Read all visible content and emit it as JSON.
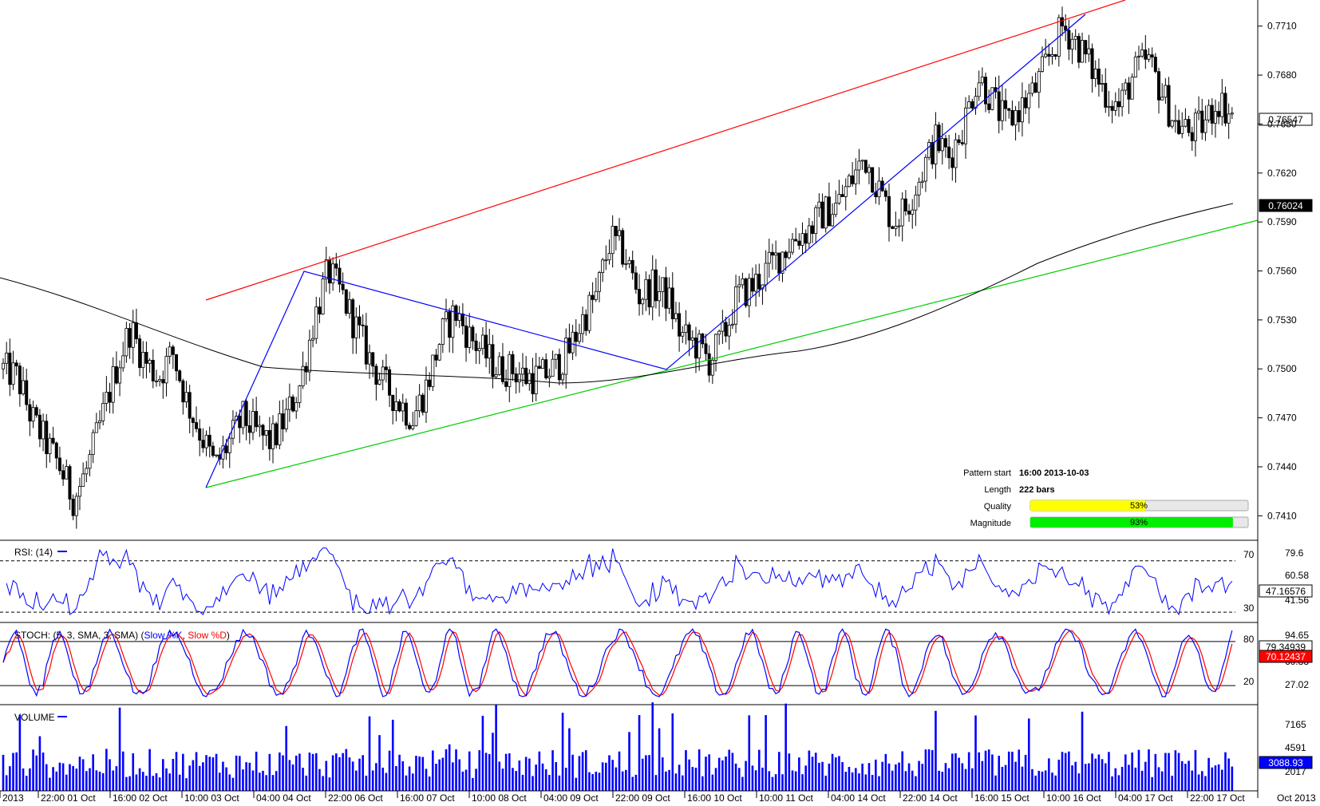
{
  "chart_data": {
    "type": "candlestick",
    "main": {
      "y_ticks": [
        "0.7710",
        "0.7680",
        "0.7650",
        "0.7620",
        "0.7590",
        "0.7560",
        "0.7530",
        "0.7500",
        "0.7470",
        "0.7440",
        "0.7410"
      ],
      "ylim": [
        0.7395,
        0.7726
      ],
      "current_price": "0.76547",
      "ma_value": "0.76024",
      "candles_shown": 370,
      "ohlc_approx": [
        0.75,
        0.7495,
        0.747,
        0.7455,
        0.744,
        0.742,
        0.744,
        0.747,
        0.75,
        0.7525,
        0.7505,
        0.7495,
        0.751,
        0.748,
        0.746,
        0.744,
        0.7455,
        0.747,
        0.746,
        0.7455,
        0.747,
        0.749,
        0.753,
        0.756,
        0.7545,
        0.7525,
        0.7505,
        0.749,
        0.748,
        0.747,
        0.749,
        0.752,
        0.7535,
        0.752,
        0.751,
        0.75,
        0.75,
        0.7495,
        0.7495,
        0.75,
        0.751,
        0.753,
        0.7545,
        0.758,
        0.757,
        0.7545,
        0.755,
        0.7545,
        0.752,
        0.7515,
        0.7505,
        0.752,
        0.7545,
        0.755,
        0.756,
        0.757,
        0.758,
        0.7585,
        0.7595,
        0.76,
        0.7615,
        0.763,
        0.761,
        0.759,
        0.76,
        0.762,
        0.764,
        0.763,
        0.765,
        0.768,
        0.7665,
        0.765,
        0.766,
        0.767,
        0.769,
        0.771,
        0.77,
        0.7685,
        0.767,
        0.766,
        0.768,
        0.769,
        0.767,
        0.765,
        0.7645,
        0.765,
        0.7665,
        0.7655
      ],
      "trend_lines": {
        "resistance": {
          "color": "#ff0000"
        },
        "support": {
          "color": "#00cc00"
        },
        "zigzag": {
          "color": "#0000ff"
        },
        "moving_average": {
          "color": "#000000"
        }
      }
    },
    "x_labels": [
      "2013",
      "22:00 01 Oct",
      "16:00 02 Oct",
      "10:00 03 Oct",
      "04:00 04 Oct",
      "22:00 06 Oct",
      "16:00 07 Oct",
      "10:00 08 Oct",
      "04:00 09 Oct",
      "22:00 09 Oct",
      "16:00 10 Oct",
      "10:00 11 Oct",
      "04:00 14 Oct",
      "22:00 14 Oct",
      "16:00 15 Oct",
      "10:00 16 Oct",
      "04:00 17 Oct",
      "22:00 17 Oct"
    ],
    "x_corner_label": "Oct 2013",
    "pattern_info": {
      "pattern_start_label": "Pattern start",
      "pattern_start_value": "16:00 2013-10-03",
      "length_label": "Length",
      "length_value": "222 bars",
      "quality_label": "Quality",
      "quality_value": "53%",
      "quality_fraction": 0.53,
      "quality_color": "#ffff00",
      "magnitude_label": "Magnitude",
      "magnitude_value": "93%",
      "magnitude_fraction": 0.93,
      "magnitude_color": "#00ee00"
    },
    "rsi": {
      "title": "RSI: (14)",
      "color": "#0000ff",
      "levels": [
        "70",
        "30"
      ],
      "y_ticks": [
        "79.6",
        "60.58",
        "41.56"
      ],
      "current": "47.16576",
      "ylim": [
        22,
        86
      ]
    },
    "stoch": {
      "title_prefix": "STOCH: (5, 3, SMA, 3, SMA)",
      "k_label": "Slow %K",
      "k_color": "#0000ff",
      "d_label": "Slow %D",
      "d_color": "#ff0000",
      "levels": [
        "80",
        "20"
      ],
      "y_ticks": [
        "94.65",
        "60.83",
        "27.02"
      ],
      "current_k": "79.34939",
      "current_d": "70.12437",
      "ylim": [
        -6,
        106
      ]
    },
    "volume": {
      "title": "VOLUME",
      "color": "#0000ff",
      "y_ticks": [
        "7165",
        "4591",
        "2017"
      ],
      "current": "3088.93",
      "ylim": [
        0,
        8200
      ]
    }
  }
}
